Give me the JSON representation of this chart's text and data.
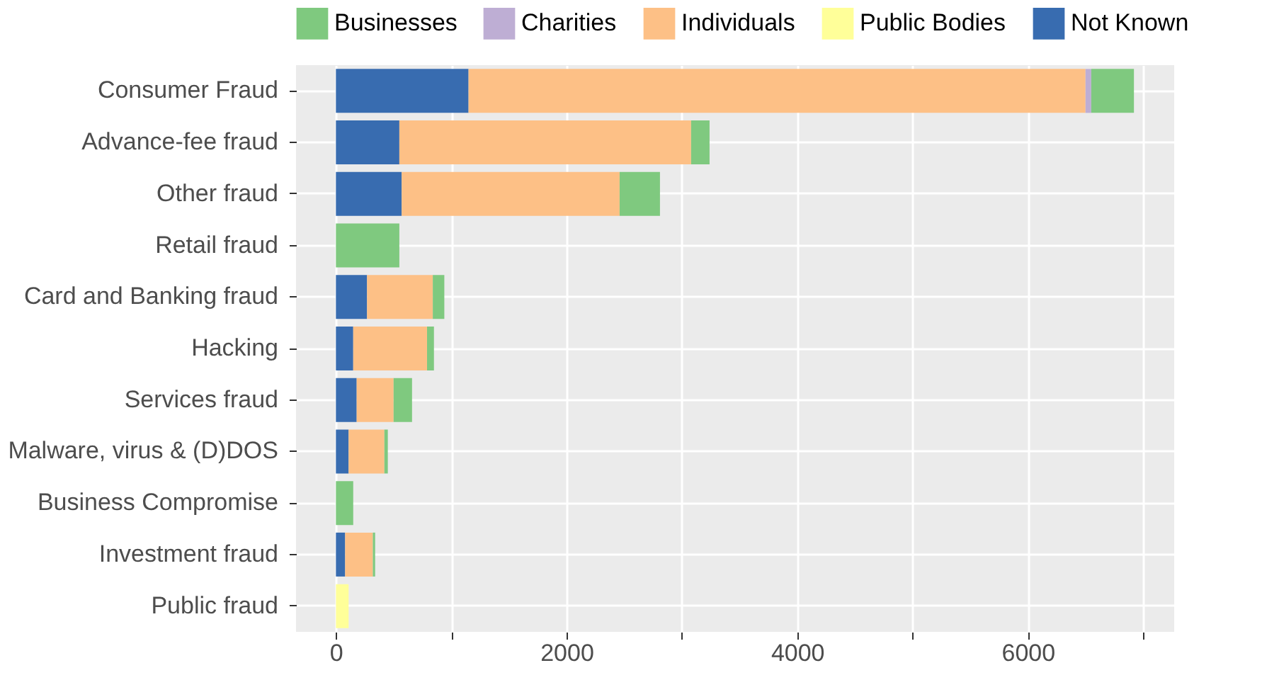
{
  "chart_data": {
    "type": "bar",
    "orientation": "horizontal",
    "stacked": true,
    "categories": [
      "Consumer Fraud",
      "Advance-fee fraud",
      "Other fraud",
      "Retail fraud",
      "Card and Banking fraud",
      "Hacking",
      "Services fraud",
      "Malware, virus & (D)DOS",
      "Business Compromise",
      "Investment fraud",
      "Public fraud"
    ],
    "series": [
      {
        "name": "Not Known",
        "color": "#386cb0",
        "values": [
          1150,
          550,
          570,
          null,
          270,
          150,
          180,
          110,
          null,
          80,
          null
        ]
      },
      {
        "name": "Public Bodies",
        "color": "#ffff99",
        "values": [
          null,
          null,
          null,
          null,
          null,
          null,
          null,
          null,
          null,
          null,
          110
        ]
      },
      {
        "name": "Individuals",
        "color": "#fdc086",
        "values": [
          5350,
          2530,
          1890,
          null,
          570,
          640,
          320,
          310,
          null,
          240,
          null
        ]
      },
      {
        "name": "Charities",
        "color": "#beaed4",
        "values": [
          50,
          null,
          null,
          null,
          null,
          null,
          null,
          null,
          null,
          null,
          null
        ]
      },
      {
        "name": "Businesses",
        "color": "#7fc97f",
        "values": [
          370,
          160,
          350,
          550,
          100,
          60,
          160,
          30,
          150,
          20,
          null
        ]
      }
    ],
    "xlim": [
      -346,
      7269
    ],
    "xticks": [
      0,
      {
        "value": 1000,
        "label": null
      },
      2000,
      {
        "value": 3000,
        "label": null
      },
      4000,
      {
        "value": 5000,
        "label": null
      },
      6000,
      {
        "value": 7000,
        "label": null
      }
    ],
    "grid": true,
    "legend": "top"
  }
}
